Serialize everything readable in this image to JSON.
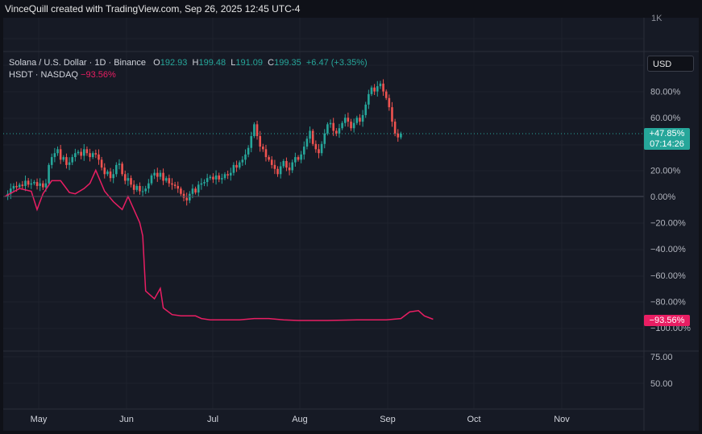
{
  "header": {
    "text": "VinceQuill created with TradingView.com, Sep 26, 2025 12:45 UTC-4"
  },
  "legend": {
    "symbol": "Solana / U.S. Dollar · 1D · Binance",
    "open_label": "O",
    "open": "192.93",
    "high_label": "H",
    "high": "199.48",
    "low_label": "L",
    "low": "191.09",
    "close_label": "C",
    "close": "199.35",
    "change": "+6.47 (+3.35%)",
    "compare_symbol": "HSDT · NASDAQ",
    "compare_value": "−93.56%"
  },
  "toolbar": {
    "currency": "USD"
  },
  "price_tag": {
    "value": "+47.85%",
    "countdown": "07:14:26"
  },
  "compare_tag": {
    "value": "−93.56%"
  },
  "top_axis_label": "1K",
  "colors": {
    "up": "#26a69a",
    "down": "#ef5350",
    "compare": "#e91e63",
    "background": "#161a25",
    "grid": "#1e222d"
  },
  "chart_data": {
    "type": "line",
    "percent_scale": true,
    "y_ticks_percent": [
      80,
      60,
      40,
      20,
      0,
      -20,
      -40,
      -60,
      -80,
      -100
    ],
    "y_tick_labels_percent": [
      "80.00%",
      "60.00%",
      "40.00%",
      "20.00%",
      "0.00%",
      "−20.00%",
      "−40.00%",
      "−60.00%",
      "−80.00%",
      "−100.00%"
    ],
    "lower_axis_ticks": [
      75,
      50
    ],
    "lower_axis_labels": [
      "75.00",
      "50.00"
    ],
    "x_tick_labels": [
      "May",
      "Jun",
      "Jul",
      "Aug",
      "Sep",
      "Oct",
      "Nov"
    ],
    "series": [
      {
        "name": "Solana / U.S. Dollar · 1D · Binance",
        "kind": "candlestick",
        "pct_change": [
          0,
          2,
          6,
          8,
          7,
          9,
          8,
          12,
          9,
          10,
          11,
          8,
          10,
          7,
          10,
          24,
          30,
          33,
          36,
          28,
          30,
          24,
          26,
          30,
          33,
          34,
          31,
          36,
          33,
          30,
          33,
          32,
          28,
          22,
          17,
          19,
          14,
          17,
          24,
          25,
          17,
          12,
          14,
          9,
          5,
          8,
          4,
          4,
          6,
          10,
          16,
          18,
          15,
          18,
          12,
          14,
          10,
          9,
          8,
          6,
          2,
          -1,
          -3,
          2,
          6,
          3,
          9,
          10,
          11,
          14,
          15,
          13,
          16,
          13,
          14,
          17,
          16,
          18,
          24,
          22,
          26,
          28,
          32,
          37,
          46,
          55,
          46,
          38,
          36,
          30,
          28,
          24,
          21,
          17,
          23,
          27,
          22,
          20,
          26,
          30,
          28,
          32,
          38,
          44,
          50,
          40,
          36,
          33,
          40,
          48,
          55,
          56,
          50,
          48,
          52,
          56,
          60,
          57,
          52,
          56,
          60,
          57,
          62,
          70,
          78,
          83,
          80,
          84,
          86,
          80,
          75,
          68,
          57,
          48,
          45,
          47.85
        ]
      },
      {
        "name": "HSDT · NASDAQ",
        "kind": "line",
        "points": [
          [
            0,
            0
          ],
          [
            5,
            6
          ],
          [
            9,
            4
          ],
          [
            11,
            -10
          ],
          [
            13,
            2
          ],
          [
            16,
            12
          ],
          [
            19,
            12
          ],
          [
            22,
            3
          ],
          [
            24,
            2
          ],
          [
            27,
            6
          ],
          [
            29,
            10
          ],
          [
            31,
            20
          ],
          [
            34,
            4
          ],
          [
            37,
            -4
          ],
          [
            40,
            -10
          ],
          [
            42,
            0
          ],
          [
            46,
            -20
          ],
          [
            47,
            -30
          ],
          [
            48,
            -72
          ],
          [
            51,
            -78
          ],
          [
            53,
            -70
          ],
          [
            54,
            -85
          ],
          [
            57,
            -90
          ],
          [
            60,
            -91
          ],
          [
            65,
            -91
          ],
          [
            67,
            -93
          ],
          [
            70,
            -94
          ],
          [
            75,
            -94
          ],
          [
            80,
            -94
          ],
          [
            85,
            -93
          ],
          [
            90,
            -93
          ],
          [
            95,
            -94
          ],
          [
            100,
            -94.5
          ],
          [
            110,
            -94.5
          ],
          [
            120,
            -94
          ],
          [
            130,
            -94
          ],
          [
            135,
            -93
          ],
          [
            138,
            -88
          ],
          [
            141,
            -87
          ],
          [
            143,
            -91
          ],
          [
            146,
            -93.56
          ]
        ]
      }
    ]
  }
}
